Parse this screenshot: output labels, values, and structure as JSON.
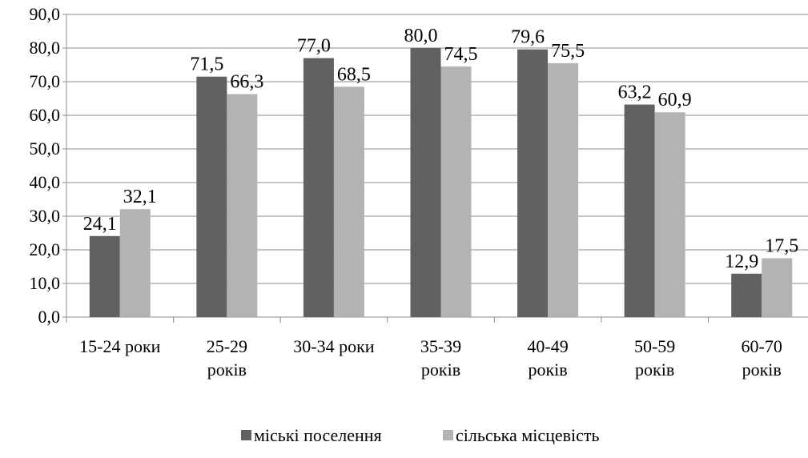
{
  "chart_data": {
    "type": "bar",
    "title": "",
    "xlabel": "",
    "ylabel": "",
    "ylim": [
      0,
      90
    ],
    "yticks": [
      "0,0",
      "10,0",
      "20,0",
      "30,0",
      "40,0",
      "50,0",
      "60,0",
      "70,0",
      "80,0",
      "90,0"
    ],
    "grid": true,
    "legend_position": "bottom",
    "categories": [
      [
        "15-24 роки"
      ],
      [
        "25-29",
        "років"
      ],
      [
        "30-34 роки"
      ],
      [
        "35-39",
        "років"
      ],
      [
        "40-49",
        "років"
      ],
      [
        "50-59",
        "років"
      ],
      [
        "60-70",
        "років"
      ]
    ],
    "series": [
      {
        "name": "міські поселення",
        "color": "#616161",
        "values": [
          24.1,
          71.5,
          77.0,
          80.0,
          79.6,
          63.2,
          12.9
        ],
        "labels": [
          "24,1",
          "71,5",
          "77,0",
          "80,0",
          "79,6",
          "63,2",
          "12,9"
        ]
      },
      {
        "name": "сільська місцевість",
        "color": "#b3b3b3",
        "values": [
          32.1,
          66.3,
          68.5,
          74.5,
          75.5,
          60.9,
          17.5
        ],
        "labels": [
          "32,1",
          "66,3",
          "68,5",
          "74,5",
          "75,5",
          "60,9",
          "17,5"
        ]
      }
    ]
  }
}
